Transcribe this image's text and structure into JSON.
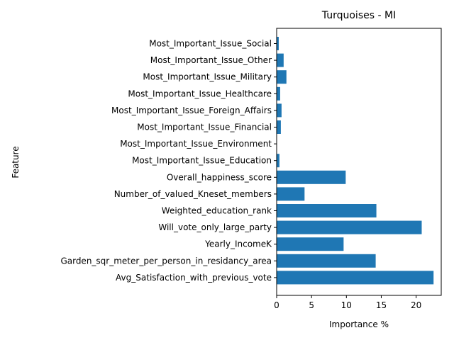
{
  "chart_data": {
    "type": "bar",
    "orientation": "horizontal",
    "title": "Turquoises - MI",
    "xlabel": "Importance %",
    "ylabel": "Feature",
    "xlim": [
      0,
      23.6
    ],
    "xticks": [
      "0",
      "5",
      "10",
      "15",
      "20"
    ],
    "grid": false,
    "bar_color": "#1f77b4",
    "categories": [
      "Most_Important_Issue_Social",
      "Most_Important_Issue_Other",
      "Most_Important_Issue_Military",
      "Most_Important_Issue_Healthcare",
      "Most_Important_Issue_Foreign_Affairs",
      "Most_Important_Issue_Financial",
      "Most_Important_Issue_Environment",
      "Most_Important_Issue_Education",
      "Overall_happiness_score",
      "Number_of_valued_Kneset_members",
      "Weighted_education_rank",
      "Will_vote_only_large_party",
      "Yearly_IncomeK",
      "Garden_sqr_meter_per_person_in_residancy_area",
      "Avg_Satisfaction_with_previous_vote"
    ],
    "values": [
      0.3,
      1.0,
      1.4,
      0.5,
      0.7,
      0.6,
      0.05,
      0.4,
      9.9,
      4.0,
      14.3,
      20.8,
      9.6,
      14.2,
      22.5
    ]
  }
}
